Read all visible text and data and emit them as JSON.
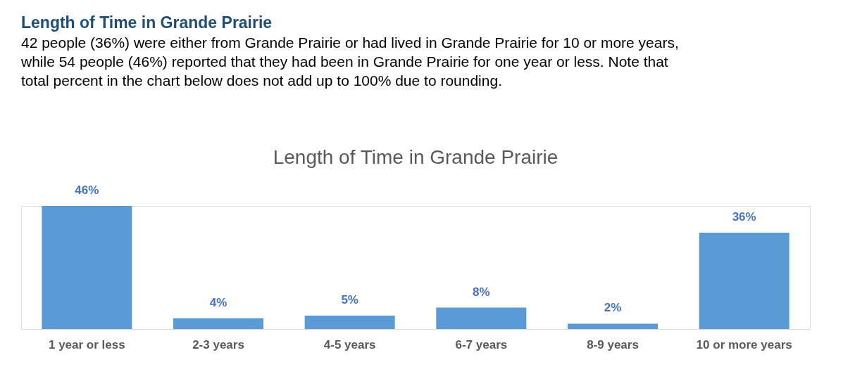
{
  "chart_data": {
    "type": "bar",
    "title": "Length of Time in Grande Prairie",
    "subtitle": "42 people (36%) were either from Grande Prairie or had lived in Grande Prairie for 10 or more years, while 54 people (46%) reported that they had been in Grande Prairie for one year or less. Note that total percent in the chart below does not add up to 100% due to rounding.",
    "annotations": [
      "Length of Time in Grande Prairie"
    ],
    "categories": [
      "1 year or less",
      "2-3 years",
      "4-5 years",
      "6-7 years",
      "8-9 years",
      "10 or more years"
    ],
    "values": [
      46,
      4,
      5,
      8,
      2,
      36
    ],
    "value_labels": [
      "46%",
      "4%",
      "5%",
      "8%",
      "2%",
      "36%"
    ],
    "color": "#5b9bd5"
  }
}
